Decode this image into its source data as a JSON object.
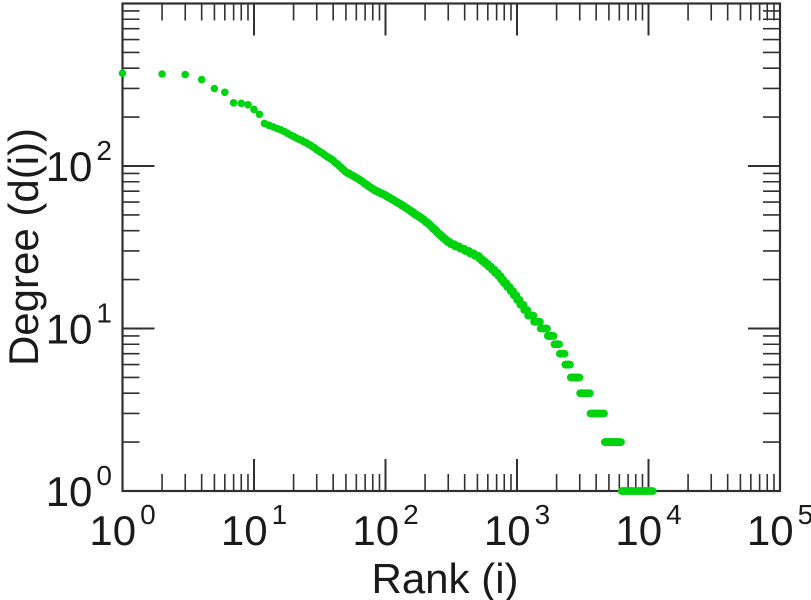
{
  "figure": {
    "background": "#ffffff"
  },
  "chart_data": {
    "type": "scatter",
    "title": "",
    "xlabel": "Rank (i)",
    "ylabel": "Degree (d(i))",
    "xscale": "log",
    "yscale": "log",
    "xlim": [
      1,
      100000
    ],
    "ylim": [
      1,
      1000
    ],
    "tick_base": "10",
    "x_tick_exponents": [
      0,
      1,
      2,
      3,
      4,
      5
    ],
    "y_tick_exponents": [
      0,
      1,
      2,
      3
    ],
    "y_tick_labeled_exponents": [
      0,
      1,
      2
    ],
    "grid": false,
    "legend": null,
    "axis_color": "#303030",
    "text_color": "#1a1a1a",
    "marker": {
      "shape": "circle",
      "color": "#00D30F",
      "radius_px": 3.8
    },
    "series": [
      {
        "name": "degree-vs-rank",
        "description": "Node degree d(i) plotted against rank i on log-log axes; degrees are integers so the tail forms horizontal steps at d=6,5,4,3,2,1. Curve read off the plot as anchor points [rank, degree]; full curve is log-log interpolation of anchors with degree rounded to nearest integer.",
        "max_rank": 10800,
        "anchors": [
          [
            1,
            372
          ],
          [
            2,
            368
          ],
          [
            3,
            365
          ],
          [
            4,
            340
          ],
          [
            5,
            300
          ],
          [
            6,
            284
          ],
          [
            7,
            245
          ],
          [
            8,
            243
          ],
          [
            9,
            238
          ],
          [
            10,
            223
          ],
          [
            11,
            208
          ],
          [
            12,
            183
          ],
          [
            14,
            174
          ],
          [
            16,
            167
          ],
          [
            19,
            155
          ],
          [
            23,
            144
          ],
          [
            27,
            134
          ],
          [
            32,
            122
          ],
          [
            40,
            108
          ],
          [
            50,
            92
          ],
          [
            64,
            82
          ],
          [
            80,
            72
          ],
          [
            100,
            66
          ],
          [
            140,
            56
          ],
          [
            200,
            46
          ],
          [
            300,
            34
          ],
          [
            500,
            28
          ],
          [
            700,
            22
          ],
          [
            1000,
            15.5
          ],
          [
            1200,
            12.5
          ],
          [
            1500,
            10.5
          ],
          [
            1700,
            9.5
          ],
          [
            1900,
            8.6
          ],
          [
            2050,
            7.8
          ],
          [
            2200,
            7.0
          ],
          [
            2350,
            6.3
          ],
          [
            2550,
            5.5
          ],
          [
            3000,
            4.5
          ],
          [
            3600,
            3.5
          ],
          [
            4600,
            2.5
          ],
          [
            6200,
            1.5
          ],
          [
            10800,
            1.0
          ]
        ]
      }
    ]
  }
}
